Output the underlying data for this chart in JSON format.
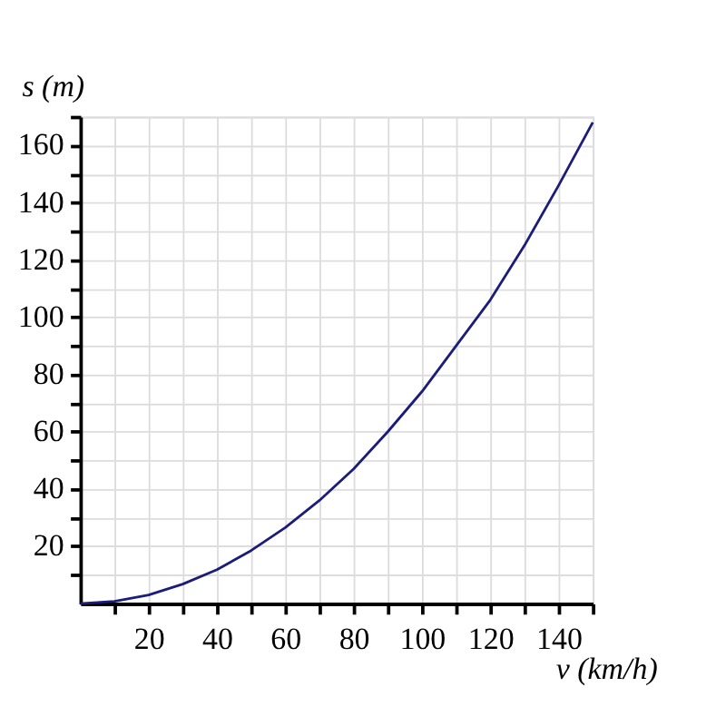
{
  "chart_data": {
    "type": "line",
    "xlabel": "v (km/h)",
    "ylabel": "s (m)",
    "x": [
      0,
      10,
      20,
      30,
      40,
      50,
      60,
      70,
      80,
      90,
      100,
      110,
      120,
      130,
      140,
      150
    ],
    "series": [
      {
        "color": "#1c1c7a",
        "values": [
          0,
          0.8,
          3,
          6.8,
          11.8,
          18.5,
          26.5,
          36,
          47,
          60,
          74,
          90,
          106,
          125,
          146,
          168
        ]
      }
    ],
    "xlim": [
      0,
      150
    ],
    "ylim": [
      0,
      170
    ],
    "xticks": [
      {
        "value": 10,
        "label": null
      },
      20,
      {
        "value": 30,
        "label": null
      },
      40,
      {
        "value": 50,
        "label": null
      },
      60,
      {
        "value": 70,
        "label": null
      },
      80,
      {
        "value": 90,
        "label": null
      },
      100,
      {
        "value": 110,
        "label": null
      },
      120,
      {
        "value": 130,
        "label": null
      },
      140,
      {
        "value": 150,
        "label": null
      }
    ],
    "yticks": [
      {
        "value": 10,
        "label": null
      },
      20,
      {
        "value": 30,
        "label": null
      },
      40,
      {
        "value": 50,
        "label": null
      },
      60,
      {
        "value": 70,
        "label": null
      },
      80,
      {
        "value": 90,
        "label": null
      },
      100,
      {
        "value": 110,
        "label": null
      },
      120,
      {
        "value": 130,
        "label": null
      },
      140,
      {
        "value": 150,
        "label": null
      },
      160,
      {
        "value": 170,
        "label": null
      }
    ],
    "grid": true,
    "marker": "none",
    "line_style": "solid"
  }
}
